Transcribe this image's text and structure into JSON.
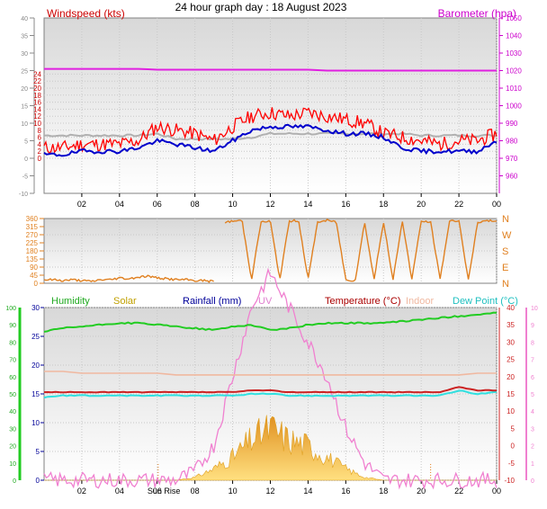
{
  "title": "24 hour graph day : 18 August 2023",
  "colors": {
    "wind_avg": "#0000cc",
    "gust": "#ff0000",
    "baro": "#e020e0",
    "wind_grey": "#b0b0b0",
    "dir": "#e08020",
    "humidity": "#22cc22",
    "solar": "#f0b030",
    "uv": "#f080d0",
    "temp": "#cc2222",
    "indoor": "#f0b8a0",
    "dewpoint": "#30e0e0",
    "rainfall_label": "#000099"
  },
  "x_ticks": [
    "02",
    "04",
    "06",
    "08",
    "10",
    "12",
    "14",
    "16",
    "18",
    "20",
    "22",
    "00"
  ],
  "sunrise_label": "Sun Rise",
  "chart_data": [
    {
      "type": "line",
      "name": "wind_baro",
      "labels": {
        "left": "Windspeed (kts)",
        "right": "Barometer (hpa)"
      },
      "ylim_left": [
        -10,
        40
      ],
      "ylim_right": [
        950,
        1050
      ],
      "left_ticks": [
        -10,
        -5,
        0,
        5,
        10,
        15,
        20,
        25,
        30,
        35,
        40
      ],
      "left_ticks_inner": [
        0,
        2,
        4,
        6,
        8,
        10,
        12,
        14,
        16,
        18,
        20,
        22,
        24
      ],
      "right_ticks": [
        960,
        970,
        980,
        990,
        1000,
        1010,
        1020,
        1030,
        1040,
        1050
      ],
      "x_hours": [
        0,
        1,
        2,
        3,
        4,
        5,
        6,
        7,
        8,
        9,
        10,
        11,
        12,
        13,
        14,
        15,
        16,
        17,
        18,
        19,
        20,
        21,
        22,
        23,
        24
      ],
      "series": [
        {
          "key": "baro",
          "values": [
            1021,
            1021,
            1021,
            1021,
            1021,
            1021,
            1020.5,
            1020.5,
            1020.5,
            1020.5,
            1020.5,
            1020.5,
            1020.5,
            1020.5,
            1020.5,
            1020,
            1020,
            1020,
            1020,
            1020,
            1020,
            1020,
            1020,
            1020,
            1020
          ]
        },
        {
          "key": "wind_grey",
          "values": [
            6.5,
            6.5,
            6.5,
            6.5,
            6.5,
            6.5,
            7,
            5.5,
            5.5,
            5.5,
            5.5,
            6,
            7,
            7,
            7,
            7,
            7,
            7,
            7,
            7,
            6.5,
            6.5,
            6.5,
            6.5,
            6.5
          ]
        },
        {
          "key": "gust",
          "values": [
            3,
            3,
            4,
            4,
            4,
            5,
            9,
            8,
            7,
            5,
            9,
            12,
            13,
            12,
            13,
            12,
            11,
            10,
            7,
            6,
            5,
            4,
            5,
            5,
            7
          ]
        },
        {
          "key": "wind_avg",
          "values": [
            1,
            1,
            2,
            2,
            2,
            3,
            5,
            4,
            3,
            2,
            5,
            8,
            9,
            9,
            9,
            8,
            7,
            7,
            6,
            3,
            2,
            2,
            2,
            2,
            5
          ]
        }
      ]
    },
    {
      "type": "line",
      "name": "wind_direction",
      "right_labels": [
        "N",
        "W",
        "S",
        "E",
        "N"
      ],
      "ylim": [
        0,
        360
      ],
      "left_ticks": [
        0,
        45,
        90,
        135,
        180,
        225,
        270,
        315,
        360
      ],
      "left_tick_labels": [
        "0",
        "45",
        "90",
        "135",
        "180",
        "225",
        "270",
        "315",
        "360"
      ],
      "series": [
        {
          "key": "dir",
          "segments": [
            {
              "hours": [
                0,
                0.5,
                1,
                1.5,
                2,
                2.5,
                3,
                3.5,
                4,
                4.5,
                5,
                5.5,
                6,
                6.5,
                7,
                7.5,
                8,
                8.5,
                9
              ],
              "values": [
                20,
                20,
                15,
                20,
                15,
                10,
                20,
                20,
                30,
                25,
                35,
                40,
                30,
                25,
                20,
                20,
                15,
                15,
                10
              ]
            },
            {
              "hours": [
                9.6,
                10,
                10.5,
                11,
                11.5,
                12,
                12.5,
                13,
                13.5,
                14,
                14.5,
                15,
                15.5,
                16,
                16.5,
                17,
                17.5,
                18,
                18.5,
                19,
                19.5,
                20,
                20.5,
                21,
                21.5,
                22,
                22.5,
                23,
                23.5,
                24
              ],
              "values": [
                340,
                345,
                350,
                20,
                340,
                345,
                20,
                345,
                350,
                20,
                340,
                350,
                340,
                20,
                15,
                340,
                20,
                345,
                15,
                350,
                20,
                345,
                340,
                20,
                345,
                350,
                15,
                340,
                345,
                350
              ]
            }
          ]
        }
      ]
    },
    {
      "type": "area",
      "name": "temp_humidity_solar",
      "labels": {
        "humidity": "Humidity",
        "solar": "Solar",
        "rainfall": "Rainfall (mm)",
        "uv": "UV",
        "temp": "Temperature (°C)",
        "indoor": "Indoor",
        "dewpoint": "Dew Point (°C)"
      },
      "humidity_ticks": [
        0,
        10,
        20,
        30,
        40,
        50,
        60,
        70,
        80,
        90,
        100
      ],
      "left_ticks": [
        0,
        5,
        10,
        15,
        20,
        25,
        30
      ],
      "ylim_left": [
        0,
        30
      ],
      "right_ticks": [
        -10,
        -5,
        0,
        5,
        10,
        15,
        20,
        25,
        30,
        35,
        40
      ],
      "ylim_right": [
        -10,
        40
      ],
      "uv_ticks": [
        0,
        1,
        2,
        3,
        4,
        5,
        6,
        7,
        8,
        9,
        10
      ],
      "x_hours": [
        0,
        1,
        2,
        3,
        4,
        5,
        6,
        7,
        8,
        9,
        10,
        11,
        12,
        13,
        14,
        15,
        16,
        17,
        18,
        19,
        20,
        21,
        22,
        23,
        24
      ],
      "series": [
        {
          "key": "humidity",
          "values": [
            86,
            88,
            89,
            90,
            91,
            91,
            90,
            89,
            88,
            87,
            89,
            90,
            87,
            88,
            90,
            91,
            91,
            91,
            91,
            92,
            93,
            94,
            95,
            96,
            97
          ]
        },
        {
          "key": "indoor",
          "values": [
            21.5,
            21.5,
            21,
            21,
            21,
            21,
            21,
            20.5,
            20.5,
            20.5,
            20.5,
            20.5,
            20.5,
            20.5,
            20.5,
            20.5,
            20.5,
            20.5,
            20.5,
            20.5,
            20.5,
            20.5,
            20.5,
            21,
            21
          ]
        },
        {
          "key": "temp",
          "values": [
            15.5,
            15.5,
            15.5,
            15.5,
            15.5,
            15.5,
            15.5,
            15.5,
            15.5,
            15.5,
            15.5,
            16,
            16,
            15.5,
            15.5,
            15.5,
            15.5,
            15.5,
            15.5,
            15.5,
            15.5,
            15.5,
            17,
            16,
            16
          ]
        },
        {
          "key": "dewpoint",
          "values": [
            14,
            14.5,
            14.5,
            14.5,
            14.5,
            14.5,
            14.5,
            14.5,
            14.5,
            14.5,
            14.5,
            15,
            15,
            14.5,
            14.5,
            14.5,
            14.5,
            14.5,
            14.5,
            14.5,
            14.5,
            14.5,
            16,
            15,
            15.5
          ]
        },
        {
          "key": "solar",
          "values": [
            0,
            0,
            0,
            0,
            0,
            0,
            0,
            0,
            0.5,
            2,
            4,
            7,
            9,
            7,
            6,
            4,
            2,
            0.5,
            0,
            0,
            0,
            0,
            0,
            0,
            0
          ]
        },
        {
          "key": "uv",
          "values": [
            0,
            0,
            0,
            0,
            0,
            0,
            0,
            0,
            0.5,
            2,
            6,
            10,
            12,
            10,
            8,
            6,
            3,
            1,
            0,
            0,
            0,
            0,
            0,
            0,
            0
          ]
        }
      ]
    }
  ]
}
